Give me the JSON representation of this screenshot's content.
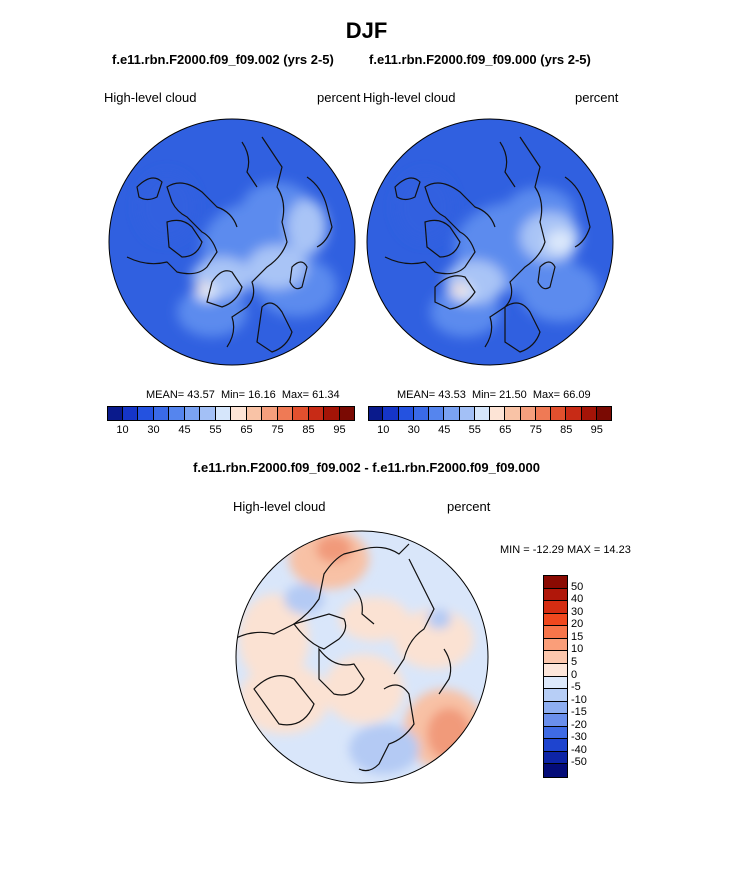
{
  "title": "DJF",
  "panel_left": {
    "case": "f.e11.rbn.F2000.f09_f09.002 (yrs 2-5)",
    "variable": "High-level cloud",
    "units": "percent",
    "stats": {
      "mean_label": "MEAN=",
      "mean": "43.57",
      "min_label": "Min=",
      "min": "16.16",
      "max_label": "Max=",
      "max": "61.34"
    }
  },
  "panel_right": {
    "case": "f.e11.rbn.F2000.f09_f09.000 (yrs 2-5)",
    "variable": "High-level cloud",
    "units": "percent",
    "stats": {
      "mean_label": "MEAN=",
      "mean": "43.53",
      "min_label": "Min=",
      "min": "21.50",
      "max_label": "Max=",
      "max": "66.09"
    }
  },
  "panel_diff": {
    "case": "f.e11.rbn.F2000.f09_f09.002 - f.e11.rbn.F2000.f09_f09.000",
    "variable": "High-level cloud",
    "units": "percent",
    "stats_text": "MIN = -12.29 MAX =  14.23"
  },
  "colorbar_abs": {
    "tick_labels": [
      "10",
      "30",
      "45",
      "55",
      "65",
      "75",
      "85",
      "95"
    ],
    "colors": [
      "#0a1a8c",
      "#1535c8",
      "#2452e0",
      "#3a6ae8",
      "#5585ee",
      "#7aa2f2",
      "#a3c0f6",
      "#d6e6fb",
      "#fde4d6",
      "#f9c3a6",
      "#f59f7d",
      "#ef7a55",
      "#e2502e",
      "#c82b16",
      "#a41407",
      "#7a0a03"
    ]
  },
  "colorbar_diff": {
    "tick_labels": [
      "50",
      "40",
      "30",
      "20",
      "15",
      "10",
      "5",
      "0",
      "-5",
      "-10",
      "-15",
      "-20",
      "-30",
      "-40",
      "-50"
    ],
    "colors": [
      "#8a0a02",
      "#b0170a",
      "#d52d12",
      "#f0481e",
      "#f7754a",
      "#fa9e79",
      "#fcc7ad",
      "#fde6da",
      "#dde9fb",
      "#b7cef6",
      "#8eaef1",
      "#6a8fec",
      "#3f6be4",
      "#1e44cf",
      "#0d24a6",
      "#040c78"
    ]
  },
  "map_colors": {
    "abs_base": "#3060e0",
    "abs_mid": "#5b8bee",
    "abs_light": "#a9c4f6",
    "abs_pale": "#dbe8fb",
    "abs_warm": "#fbd9c5",
    "diff_base": "#fbe2d3",
    "diff_warm": "#f8c1a5",
    "diff_red": "#f19a7a",
    "diff_cool": "#d9e6fa",
    "diff_blue": "#b4caf4",
    "coast": "#111111"
  }
}
